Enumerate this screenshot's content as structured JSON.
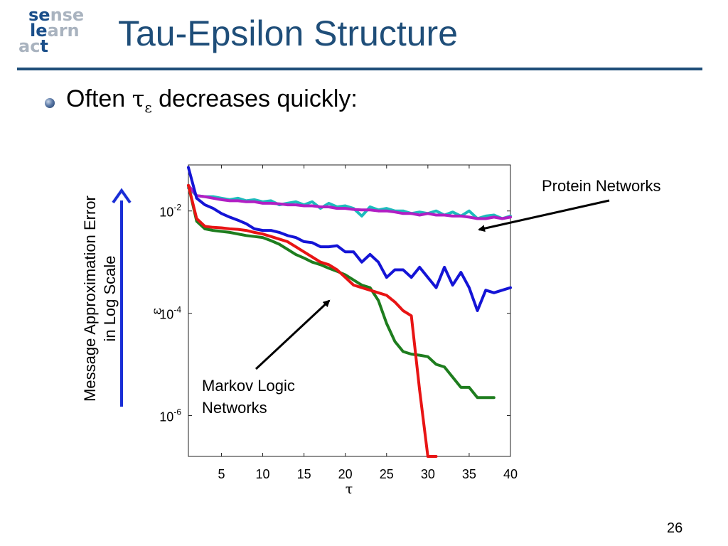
{
  "slide": {
    "title": "Tau-Epsilon Structure",
    "bullet_prefix": "Often ",
    "bullet_symbol": "τ",
    "bullet_subscript": "ε",
    "bullet_suffix": " decreases quickly:",
    "page_number": "26",
    "logo": {
      "line1_a": "se",
      "line1_b": "nse",
      "line2_a": "le",
      "line2_b": "arn",
      "line3_a": "ac",
      "line3_b": "t"
    },
    "accent_color": "#1f4e79",
    "arrow_color": "#1a2ed6"
  },
  "side_label": {
    "line1": "Message Approximation Error",
    "line2": "in Log Scale"
  },
  "annotations": {
    "protein": "Protein Networks",
    "markov_line1": "Markov Logic",
    "markov_line2": "Networks"
  },
  "chart_data": {
    "type": "line",
    "xlabel": "τ",
    "ylabel": "ε",
    "xlim": [
      1,
      40
    ],
    "ylim_log10": [
      -6.8,
      -1.1
    ],
    "y_scale": "log",
    "x_ticks": [
      "5",
      "10",
      "15",
      "20",
      "25",
      "30",
      "35",
      "40"
    ],
    "x_tick_values": [
      5,
      10,
      15,
      20,
      25,
      30,
      35,
      40
    ],
    "y_ticks": [
      {
        "value_log10": -2,
        "base": "10",
        "exp": "-2"
      },
      {
        "value_log10": -4,
        "base": "10",
        "exp": "-4"
      },
      {
        "value_log10": -6,
        "base": "10",
        "exp": "-6"
      }
    ],
    "grid": false,
    "series": [
      {
        "color": "#1cbcbc",
        "x": [
          1,
          2,
          3,
          4,
          5,
          6,
          7,
          8,
          9,
          10,
          11,
          12,
          13,
          14,
          15,
          16,
          17,
          18,
          19,
          20,
          21,
          22,
          23,
          24,
          25,
          26,
          27,
          28,
          29,
          30,
          31,
          32,
          33,
          34,
          35,
          36,
          37,
          38,
          39,
          40
        ],
        "log10_y": [
          -1.55,
          -1.7,
          -1.72,
          -1.72,
          -1.75,
          -1.78,
          -1.75,
          -1.8,
          -1.78,
          -1.82,
          -1.8,
          -1.88,
          -1.85,
          -1.82,
          -1.88,
          -1.82,
          -1.95,
          -1.85,
          -1.92,
          -1.9,
          -1.95,
          -2.1,
          -1.92,
          -1.98,
          -1.95,
          -2.0,
          -2.0,
          -2.05,
          -2.02,
          -2.05,
          -2.0,
          -2.08,
          -2.02,
          -2.1,
          -2.0,
          -2.15,
          -2.1,
          -2.08,
          -2.15,
          -2.1
        ]
      },
      {
        "color": "#b11fc4",
        "x": [
          1,
          2,
          3,
          4,
          5,
          6,
          7,
          8,
          9,
          10,
          11,
          12,
          13,
          14,
          15,
          16,
          17,
          18,
          19,
          20,
          21,
          22,
          23,
          24,
          25,
          26,
          27,
          28,
          29,
          30,
          31,
          32,
          33,
          34,
          35,
          36,
          37,
          38,
          39,
          40
        ],
        "log10_y": [
          -1.5,
          -1.7,
          -1.72,
          -1.75,
          -1.78,
          -1.8,
          -1.8,
          -1.82,
          -1.82,
          -1.85,
          -1.85,
          -1.86,
          -1.88,
          -1.88,
          -1.9,
          -1.9,
          -1.92,
          -1.92,
          -1.95,
          -1.95,
          -1.97,
          -1.98,
          -1.98,
          -2.0,
          -2.0,
          -2.02,
          -2.05,
          -2.05,
          -2.08,
          -2.05,
          -2.08,
          -2.08,
          -2.1,
          -2.1,
          -2.12,
          -2.15,
          -2.15,
          -2.12,
          -2.15,
          -2.12
        ]
      },
      {
        "color": "#1414d6",
        "x": [
          1,
          2,
          3,
          4,
          5,
          6,
          7,
          8,
          9,
          10,
          11,
          12,
          13,
          14,
          15,
          16,
          17,
          18,
          19,
          20,
          21,
          22,
          23,
          24,
          25,
          26,
          27,
          28,
          29,
          30,
          31,
          32,
          33,
          34,
          35,
          36,
          37,
          38,
          39,
          40
        ],
        "log10_y": [
          -1.15,
          -1.75,
          -1.88,
          -1.95,
          -2.05,
          -2.12,
          -2.18,
          -2.25,
          -2.35,
          -2.38,
          -2.38,
          -2.42,
          -2.48,
          -2.52,
          -2.6,
          -2.62,
          -2.7,
          -2.7,
          -2.68,
          -2.8,
          -2.8,
          -3.0,
          -2.85,
          -3.0,
          -3.3,
          -3.15,
          -3.15,
          -3.3,
          -3.1,
          -3.3,
          -3.5,
          -3.1,
          -3.45,
          -3.2,
          -3.5,
          -3.95,
          -3.55,
          -3.6,
          -3.55,
          -3.5
        ]
      },
      {
        "color": "#1e7d1e",
        "x": [
          1,
          2,
          3,
          4,
          5,
          6,
          7,
          8,
          9,
          10,
          11,
          12,
          13,
          14,
          15,
          16,
          17,
          18,
          19,
          20,
          21,
          22,
          23,
          24,
          25,
          26,
          27,
          28,
          29,
          30,
          31,
          32,
          33,
          34,
          35,
          36,
          37,
          38
        ],
        "log10_y": [
          -1.5,
          -2.2,
          -2.35,
          -2.38,
          -2.4,
          -2.42,
          -2.45,
          -2.48,
          -2.5,
          -2.52,
          -2.58,
          -2.65,
          -2.75,
          -2.85,
          -2.92,
          -3.0,
          -3.05,
          -3.12,
          -3.18,
          -3.25,
          -3.35,
          -3.45,
          -3.5,
          -3.75,
          -4.2,
          -4.55,
          -4.75,
          -4.8,
          -4.82,
          -4.85,
          -5.0,
          -5.05,
          -5.25,
          -5.45,
          -5.45,
          -5.65,
          -5.65,
          -5.65
        ]
      },
      {
        "color": "#e81414",
        "x": [
          1,
          2,
          3,
          4,
          5,
          6,
          7,
          8,
          9,
          10,
          11,
          12,
          13,
          14,
          15,
          16,
          17,
          18,
          19,
          20,
          21,
          22,
          23,
          24,
          25,
          26,
          27,
          28,
          29,
          30,
          31
        ],
        "log10_y": [
          -1.5,
          -2.15,
          -2.3,
          -2.32,
          -2.33,
          -2.35,
          -2.36,
          -2.38,
          -2.42,
          -2.45,
          -2.5,
          -2.55,
          -2.6,
          -2.7,
          -2.8,
          -2.9,
          -3.0,
          -3.05,
          -3.15,
          -3.3,
          -3.45,
          -3.5,
          -3.55,
          -3.6,
          -3.65,
          -3.78,
          -3.95,
          -4.05,
          -5.5,
          -6.8,
          -6.8
        ]
      }
    ]
  }
}
